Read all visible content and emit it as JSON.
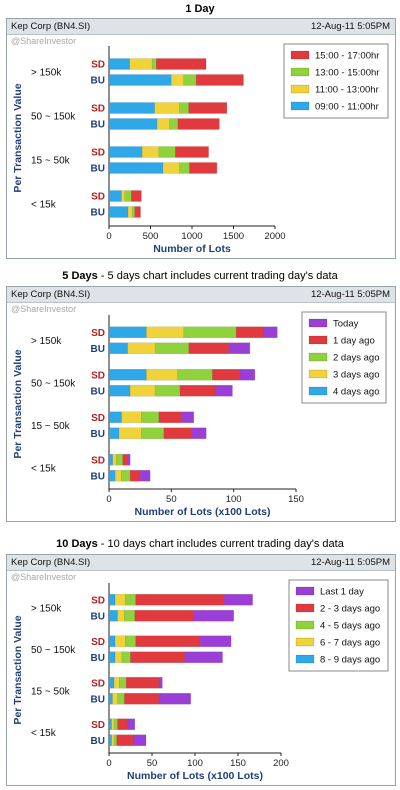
{
  "charts": [
    {
      "title_bold": "1 Day",
      "title_rest": "",
      "header": {
        "name": "Kep Corp (BN4.SI)",
        "date": "12-Aug-11 5:05PM"
      },
      "watermark": "@ShareInvestor"
    },
    {
      "title_bold": "5 Days",
      "title_rest": " - 5 days chart includes current trading day's data",
      "header": {
        "name": "Kep Corp (BN4.SI)",
        "date": "12-Aug-11 5:05PM"
      },
      "watermark": "@ShareInvestor"
    },
    {
      "title_bold": "10 Days",
      "title_rest": " - 10 days chart includes current trading day's data",
      "header": {
        "name": "Kep Corp (BN4.SI)",
        "date": "12-Aug-11 5:05PM"
      },
      "watermark": "@ShareInvestor"
    }
  ],
  "colors": {
    "red": "#e03a3e",
    "green": "#8fd23c",
    "yellow": "#f0d23a",
    "blue": "#2fa8e8",
    "purple": "#9b3ed6",
    "label_red": "#b22222",
    "label_blue": "#1f3f7a",
    "axis_title": "#1f3f7a"
  },
  "chart_data": [
    {
      "type": "bar",
      "stacked": true,
      "orientation": "horizontal",
      "ylabel": "Per Transaction Value",
      "xlabel": "Number of Lots",
      "xlim": [
        0,
        2000
      ],
      "xticks": [
        0,
        500,
        1000,
        1500,
        2000
      ],
      "groups": [
        "> 150k",
        "50 ~ 150k",
        "15 ~ 50k",
        "< 15k"
      ],
      "bar_labels": [
        "SD",
        "BU"
      ],
      "series": [
        {
          "name": "09:00 - 11:00hr",
          "color": "blue",
          "SD": [
            250,
            550,
            400,
            150
          ],
          "BU": [
            750,
            580,
            650,
            230
          ]
        },
        {
          "name": "11:00 - 13:00hr",
          "color": "yellow",
          "SD": [
            270,
            300,
            200,
            40
          ],
          "BU": [
            150,
            150,
            200,
            50
          ]
        },
        {
          "name": "13:00 - 15:00hr",
          "color": "green",
          "SD": [
            50,
            110,
            200,
            80
          ],
          "BU": [
            150,
            100,
            120,
            30
          ]
        },
        {
          "name": "15:00 - 17:00hr",
          "color": "red",
          "SD": [
            600,
            460,
            400,
            120
          ],
          "BU": [
            570,
            500,
            330,
            70
          ]
        }
      ],
      "legend_order": [
        "15:00 - 17:00hr",
        "13:00 - 15:00hr",
        "11:00 - 13:00hr",
        "09:00 - 11:00hr"
      ],
      "legend_position": "top-right"
    },
    {
      "type": "bar",
      "stacked": true,
      "orientation": "horizontal",
      "ylabel": "Per Transaction Value",
      "xlabel": "Number of Lots (x100 Lots)",
      "xlim": [
        0,
        150
      ],
      "xticks": [
        0,
        50,
        100,
        150
      ],
      "groups": [
        "> 150k",
        "50 ~ 150k",
        "15 ~ 50k",
        "< 15k"
      ],
      "bar_labels": [
        "SD",
        "BU"
      ],
      "series": [
        {
          "name": "4 days ago",
          "color": "blue",
          "SD": [
            30,
            30,
            10,
            3
          ],
          "BU": [
            15,
            17,
            8,
            5
          ]
        },
        {
          "name": "3 days ago",
          "color": "yellow",
          "SD": [
            30,
            25,
            16,
            3
          ],
          "BU": [
            22,
            20,
            18,
            5
          ]
        },
        {
          "name": "2 days ago",
          "color": "green",
          "SD": [
            42,
            28,
            14,
            5
          ],
          "BU": [
            27,
            20,
            18,
            7
          ]
        },
        {
          "name": "1 day ago",
          "color": "red",
          "SD": [
            22,
            22,
            18,
            4
          ],
          "BU": [
            32,
            28,
            22,
            8
          ]
        },
        {
          "name": "Today",
          "color": "purple",
          "SD": [
            11,
            12,
            10,
            2
          ],
          "BU": [
            17,
            14,
            12,
            8
          ]
        }
      ],
      "legend_order": [
        "Today",
        "1 day ago",
        "2 days ago",
        "3 days ago",
        "4 days ago"
      ],
      "legend_position": "top-right"
    },
    {
      "type": "bar",
      "stacked": true,
      "orientation": "horizontal",
      "ylabel": "Per Transaction Value",
      "xlabel": "Number of Lots (x100 Lots)",
      "xlim": [
        0,
        200
      ],
      "xticks": [
        0,
        50,
        100,
        150,
        200
      ],
      "groups": [
        "> 150k",
        "50 ~ 150k",
        "15 ~ 50k",
        "< 15k"
      ],
      "bar_labels": [
        "SD",
        "BU"
      ],
      "series": [
        {
          "name": "8 - 9 days ago",
          "color": "blue",
          "SD": [
            7,
            7,
            6,
            3
          ],
          "BU": [
            10,
            7,
            4,
            3
          ]
        },
        {
          "name": "6 - 7 days ago",
          "color": "yellow",
          "SD": [
            12,
            12,
            6,
            3
          ],
          "BU": [
            8,
            8,
            6,
            3
          ]
        },
        {
          "name": "4 - 5 days ago",
          "color": "green",
          "SD": [
            12,
            12,
            8,
            4
          ],
          "BU": [
            12,
            10,
            8,
            3
          ]
        },
        {
          "name": "2 - 3 days ago",
          "color": "red",
          "SD": [
            103,
            75,
            38,
            12
          ],
          "BU": [
            68,
            63,
            40,
            20
          ]
        },
        {
          "name": "Last 1 day",
          "color": "purple",
          "SD": [
            33,
            36,
            4,
            8
          ],
          "BU": [
            47,
            44,
            37,
            14
          ]
        }
      ],
      "legend_order": [
        "Last 1 day",
        "2 - 3 days ago",
        "4 - 5 days ago",
        "6 - 7 days ago",
        "8 - 9 days ago"
      ],
      "legend_position": "top-right"
    }
  ]
}
